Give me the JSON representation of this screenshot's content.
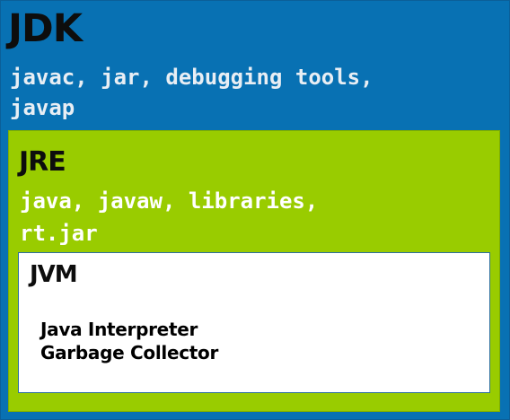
{
  "colors": {
    "jdk_bg": "#0871b3",
    "jdk_title": "#0d0d0d",
    "jdk_tools": "#e8eef4",
    "jre_bg": "#99cc00",
    "jre_title": "#0d0d0d",
    "jre_tools": "#ffffff",
    "jvm_bg": "#ffffff",
    "jvm_title": "#0d0d0d",
    "jvm_items": "#000000"
  },
  "jdk": {
    "title": "JDK",
    "tools": "javac, jar, debugging tools,\njavap"
  },
  "jre": {
    "title": "JRE",
    "tools": "java, javaw, libraries,\nrt.jar"
  },
  "jvm": {
    "title": "JVM",
    "items": [
      "Java Interpreter",
      "Garbage Collector"
    ]
  }
}
